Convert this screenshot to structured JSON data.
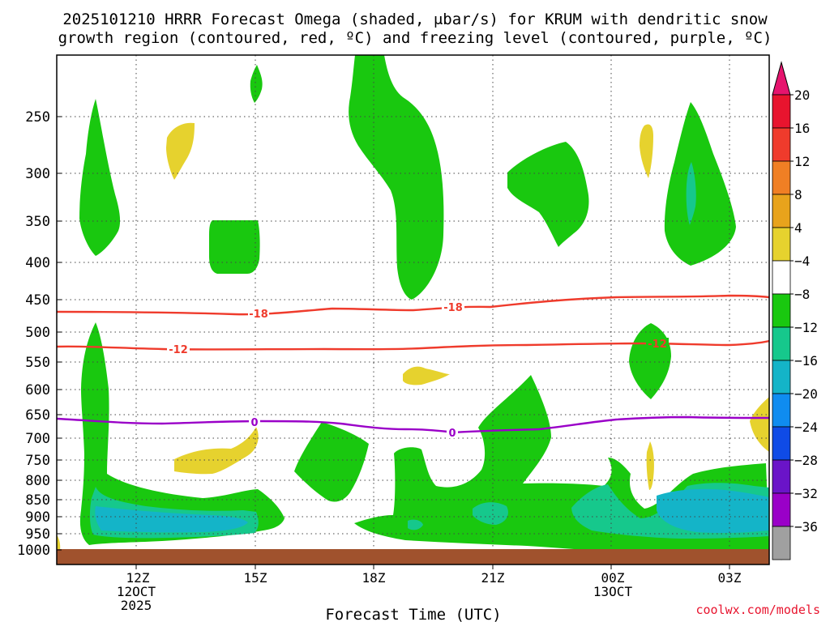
{
  "title": {
    "line1": "2025101210 HRRR Forecast Omega (shaded, μbar/s) for KRUM with dendritic snow",
    "line2": "growth region (contoured, red, ºC) and freezing level (contoured, purple, ºC)"
  },
  "chart_data": {
    "type": "heatmap",
    "title": "2025101210 HRRR Forecast Omega (shaded, μbar/s) for KRUM with dendritic snow growth region (contoured, red, ºC) and freezing level (contoured, purple, ºC)",
    "xlabel": "Forecast Time (UTC)",
    "ylabel": "",
    "y_ticks": [
      "250",
      "300",
      "350",
      "400",
      "450",
      "500",
      "550",
      "600",
      "650",
      "700",
      "750",
      "800",
      "850",
      "900",
      "950",
      "1000"
    ],
    "x_ticks": [
      {
        "label": "12Z",
        "sub1": "12OCT",
        "sub2": "2025"
      },
      {
        "label": "15Z",
        "sub1": "",
        "sub2": ""
      },
      {
        "label": "18Z",
        "sub1": "",
        "sub2": ""
      },
      {
        "label": "21Z",
        "sub1": "",
        "sub2": ""
      },
      {
        "label": "00Z",
        "sub1": "13OCT",
        "sub2": ""
      },
      {
        "label": "03Z",
        "sub1": "",
        "sub2": ""
      }
    ],
    "contours": [
      {
        "name": "snow growth upper",
        "value": "-18",
        "color": "#ef3b2c"
      },
      {
        "name": "snow growth lower",
        "value": "-12",
        "color": "#ef3b2c"
      },
      {
        "name": "freezing level",
        "value": "0",
        "color": "#9a00c8"
      }
    ],
    "colorbar": {
      "labels": [
        "20",
        "16",
        "12",
        "8",
        "4",
        "−4",
        "−8",
        "−12",
        "−16",
        "−20",
        "−24",
        "−28",
        "−32",
        "−36"
      ],
      "colors": [
        "#e8142e",
        "#ef3b2c",
        "#f07f24",
        "#e8a31c",
        "#e6d22e",
        "#ffffff",
        "#19c80f",
        "#16c88c",
        "#14b4c8",
        "#0f8cf0",
        "#0f4be6",
        "#6a14c8",
        "#9a00c8",
        "#a0a0a0"
      ],
      "top_arrow_color": "#e6146e",
      "bottom_arrow_color": "#000000"
    }
  },
  "credit": "coolwx.com/models"
}
